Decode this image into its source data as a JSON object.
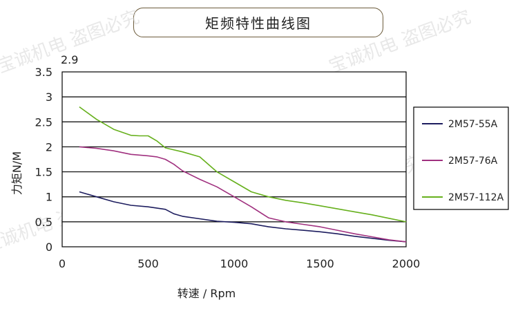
{
  "title": "矩频特性曲线图",
  "watermark_text": "宝诚机电 盗图必究",
  "chart_data": {
    "type": "line",
    "title": "矩频特性曲线图",
    "xlabel": "转速 / Rpm",
    "ylabel": "力矩N/M",
    "xlim": [
      0,
      2000
    ],
    "ylim": [
      0,
      3.5
    ],
    "x_ticks": [
      "0",
      "500",
      "1000",
      "1500",
      "2000"
    ],
    "y_ticks": [
      "0",
      "0.5",
      "1",
      "1.5",
      "2",
      "2.5",
      "3",
      "3.5"
    ],
    "y_overflow_label": "2.9",
    "grid": "horizontal",
    "legend_position": "right",
    "series": [
      {
        "name": "2M57-55A",
        "color": "#1c1c5e",
        "x": [
          100,
          200,
          300,
          400,
          500,
          600,
          650,
          700,
          800,
          900,
          1000,
          1100,
          1200,
          1300,
          1400,
          1500,
          1600,
          1700,
          1800,
          1900,
          2000
        ],
        "y": [
          1.1,
          1.0,
          0.9,
          0.83,
          0.8,
          0.75,
          0.66,
          0.61,
          0.56,
          0.51,
          0.49,
          0.46,
          0.4,
          0.36,
          0.33,
          0.3,
          0.26,
          0.21,
          0.17,
          0.13,
          0.1
        ]
      },
      {
        "name": "2M57-76A",
        "color": "#a0307f",
        "x": [
          100,
          200,
          300,
          400,
          500,
          550,
          600,
          650,
          700,
          800,
          900,
          1000,
          1100,
          1200,
          1300,
          1400,
          1500,
          1600,
          1700,
          1800,
          1900,
          2000
        ],
        "y": [
          2.0,
          1.97,
          1.92,
          1.85,
          1.82,
          1.8,
          1.75,
          1.65,
          1.52,
          1.35,
          1.2,
          1.0,
          0.8,
          0.58,
          0.5,
          0.45,
          0.4,
          0.33,
          0.26,
          0.2,
          0.14,
          0.1
        ]
      },
      {
        "name": "2M57-112A",
        "color": "#66b01c",
        "x": [
          100,
          200,
          300,
          400,
          450,
          500,
          550,
          600,
          700,
          800,
          900,
          1000,
          1100,
          1200,
          1300,
          1400,
          1500,
          1600,
          1700,
          1800,
          1900,
          2000
        ],
        "y": [
          2.8,
          2.55,
          2.35,
          2.23,
          2.22,
          2.22,
          2.12,
          1.98,
          1.9,
          1.8,
          1.5,
          1.3,
          1.1,
          1.0,
          0.93,
          0.88,
          0.82,
          0.76,
          0.7,
          0.64,
          0.57,
          0.5
        ]
      }
    ]
  }
}
